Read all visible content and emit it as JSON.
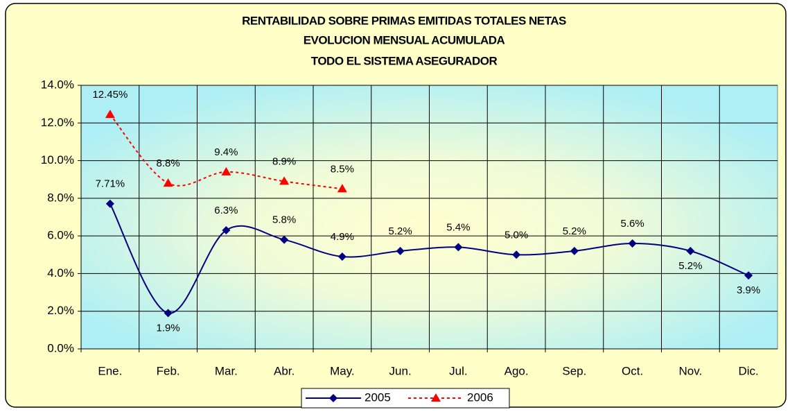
{
  "chart_data": {
    "type": "line",
    "title": [
      "RENTABILIDAD SOBRE PRIMAS EMITIDAS TOTALES NETAS",
      "EVOLUCION MENSUAL ACUMULADA",
      "TODO EL SISTEMA ASEGURADOR"
    ],
    "categories": [
      "Ene.",
      "Feb.",
      "Mar.",
      "Abr.",
      "May.",
      "Jun.",
      "Jul.",
      "Ago.",
      "Sep.",
      "Oct.",
      "Nov.",
      "Dic."
    ],
    "series": [
      {
        "name": "2005",
        "color": "#000080",
        "marker": "diamond",
        "dashed": false,
        "values": [
          7.71,
          1.9,
          6.3,
          5.8,
          4.9,
          5.2,
          5.4,
          5.0,
          5.2,
          5.6,
          5.2,
          3.9
        ],
        "value_labels": [
          "7.71%",
          "1.9%",
          "6.3%",
          "5.8%",
          "4.9%",
          "5.2%",
          "5.4%",
          "5.0%",
          "5.2%",
          "5.6%",
          "5.2%",
          "3.9%"
        ]
      },
      {
        "name": "2006",
        "color": "#ff0000",
        "marker": "triangle",
        "dashed": true,
        "values": [
          12.45,
          8.8,
          9.4,
          8.9,
          8.5,
          null,
          null,
          null,
          null,
          null,
          null,
          null
        ],
        "value_labels": [
          "12.45%",
          "8.8%",
          "9.4%",
          "8.9%",
          "8.5%",
          null,
          null,
          null,
          null,
          null,
          null,
          null
        ]
      }
    ],
    "ylim": [
      0,
      14
    ],
    "yticks": [
      {
        "value": 0,
        "label": "0.0%"
      },
      {
        "value": 2,
        "label": "2.0%"
      },
      {
        "value": 4,
        "label": "4.0%"
      },
      {
        "value": 6,
        "label": "6.0%"
      },
      {
        "value": 8,
        "label": "8.0%"
      },
      {
        "value": 10,
        "label": "10.0%"
      },
      {
        "value": 12,
        "label": "12.0%"
      },
      {
        "value": 14,
        "label": "14.0%"
      }
    ],
    "grid": true,
    "legend": "bottom"
  }
}
